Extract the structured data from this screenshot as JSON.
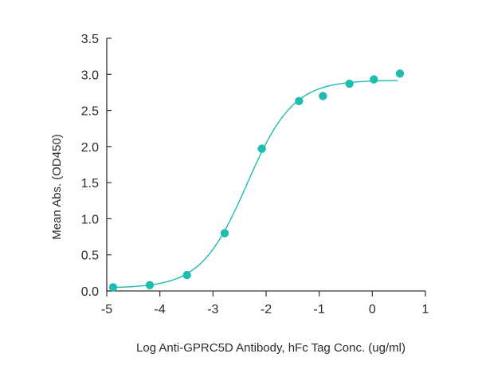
{
  "chart_data": {
    "type": "scatter",
    "title": "",
    "xlabel": "Log Anti-GPRC5D Antibody, hFc Tag Conc. (ug/ml)",
    "ylabel": "Mean Abs. (OD450)",
    "xlim": [
      -5,
      1
    ],
    "ylim": [
      0,
      3.5
    ],
    "x_ticks": [
      -5,
      -4,
      -3,
      -2,
      -1,
      0,
      1
    ],
    "y_ticks": [
      0.0,
      0.5,
      1.0,
      1.5,
      2.0,
      2.5,
      3.0,
      3.5
    ],
    "x_tick_labels": [
      "-5",
      "-4",
      "-3",
      "-2",
      "-1",
      "0",
      "1"
    ],
    "y_tick_labels": [
      "0.0",
      "0.5",
      "1.0",
      "1.5",
      "2.0",
      "2.5",
      "3.0",
      "3.5"
    ],
    "grid": false,
    "legend": "none",
    "series": [
      {
        "points": [
          {
            "x": -4.88,
            "y": 0.05
          },
          {
            "x": -4.19,
            "y": 0.08
          },
          {
            "x": -3.49,
            "y": 0.22
          },
          {
            "x": -2.78,
            "y": 0.8
          },
          {
            "x": -2.08,
            "y": 1.97
          },
          {
            "x": -1.38,
            "y": 2.63
          },
          {
            "x": -0.93,
            "y": 2.7
          },
          {
            "x": -0.43,
            "y": 2.87
          },
          {
            "x": 0.03,
            "y": 2.93
          },
          {
            "x": 0.52,
            "y": 3.01
          }
        ],
        "fit": {
          "model": "4PL",
          "bottom": 0.04,
          "top": 2.92,
          "logEC50": -2.36,
          "hill": 1.0,
          "x_range": [
            -4.88,
            0.48
          ]
        },
        "color": "#1fbcb0"
      }
    ]
  }
}
